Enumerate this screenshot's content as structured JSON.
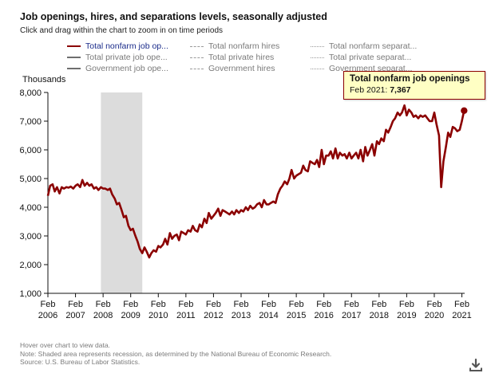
{
  "colors": {
    "accent": "#8b0000",
    "recession": "#dcdcdc",
    "tooltip_bg": "#ffffc4",
    "note": "#7a7a7a"
  },
  "legend": {
    "items": [
      {
        "label": "Total nonfarm job op...",
        "style": "solid",
        "active": true
      },
      {
        "label": "Total nonfarm hires",
        "style": "dash",
        "active": false
      },
      {
        "label": "Total nonfarm separat...",
        "style": "dot",
        "active": false
      },
      {
        "label": "Total private job ope...",
        "style": "solid",
        "active": false
      },
      {
        "label": "Total private hires",
        "style": "dash",
        "active": false
      },
      {
        "label": "Total private separat...",
        "style": "dot",
        "active": false
      },
      {
        "label": "Government job ope...",
        "style": "solid",
        "active": false
      },
      {
        "label": "Government hires",
        "style": "dash",
        "active": false
      },
      {
        "label": "Government separat...",
        "style": "dot",
        "active": false
      }
    ]
  },
  "tooltip": {
    "title": "Total nonfarm job openings",
    "date": "Feb 2021:",
    "value": "7,367"
  },
  "notes": {
    "hover": "Hover over chart to view data.",
    "shading": "Note: Shaded area represents recession, as determined by the National Bureau of Economic Research.",
    "source": "Source: U.S. Bureau of Labor Statistics."
  },
  "download_icon": "download-icon",
  "chart_data": {
    "type": "line",
    "title": "Job openings, hires, and separations levels, seasonally adjusted",
    "subtitle": "Click and drag within the chart to zoom in on time periods",
    "ylabel": "Thousands",
    "xlabel": "",
    "ylim": [
      1000,
      8000
    ],
    "y_ticks": [
      1000,
      2000,
      3000,
      4000,
      5000,
      6000,
      7000,
      8000
    ],
    "y_tick_labels": [
      "1,000",
      "2,000",
      "3,000",
      "4,000",
      "5,000",
      "6,000",
      "7,000",
      "8,000"
    ],
    "x_range": [
      2006.0,
      2021.1
    ],
    "x_ticks": [
      {
        "year": 2006,
        "line1": "Feb",
        "line2": "2006"
      },
      {
        "year": 2007,
        "line1": "Feb",
        "line2": "2007"
      },
      {
        "year": 2008,
        "line1": "Feb",
        "line2": "2008"
      },
      {
        "year": 2009,
        "line1": "Feb",
        "line2": "2009"
      },
      {
        "year": 2010,
        "line1": "Feb",
        "line2": "2010"
      },
      {
        "year": 2011,
        "line1": "Feb",
        "line2": "2011"
      },
      {
        "year": 2012,
        "line1": "Feb",
        "line2": "2012"
      },
      {
        "year": 2013,
        "line1": "Feb",
        "line2": "2013"
      },
      {
        "year": 2014,
        "line1": "Feb",
        "line2": "2014"
      },
      {
        "year": 2015,
        "line1": "Feb",
        "line2": "2015"
      },
      {
        "year": 2016,
        "line1": "Feb",
        "line2": "2016"
      },
      {
        "year": 2017,
        "line1": "Feb",
        "line2": "2017"
      },
      {
        "year": 2018,
        "line1": "Feb",
        "line2": "2018"
      },
      {
        "year": 2019,
        "line1": "Feb",
        "line2": "2019"
      },
      {
        "year": 2020,
        "line1": "Feb",
        "line2": "2020"
      },
      {
        "year": 2021,
        "line1": "Feb",
        "line2": "2021"
      }
    ],
    "recession": [
      2007.92,
      2009.42
    ],
    "grid": false,
    "series": [
      {
        "name": "Total nonfarm job openings",
        "color": "#8b0000",
        "points": [
          [
            2006.0,
            4400
          ],
          [
            2006.08,
            4750
          ],
          [
            2006.17,
            4800
          ],
          [
            2006.25,
            4550
          ],
          [
            2006.33,
            4700
          ],
          [
            2006.42,
            4480
          ],
          [
            2006.5,
            4700
          ],
          [
            2006.58,
            4650
          ],
          [
            2006.67,
            4700
          ],
          [
            2006.75,
            4680
          ],
          [
            2006.83,
            4720
          ],
          [
            2006.92,
            4650
          ],
          [
            2007.0,
            4750
          ],
          [
            2007.08,
            4800
          ],
          [
            2007.17,
            4700
          ],
          [
            2007.25,
            4950
          ],
          [
            2007.33,
            4750
          ],
          [
            2007.42,
            4850
          ],
          [
            2007.5,
            4750
          ],
          [
            2007.58,
            4800
          ],
          [
            2007.67,
            4650
          ],
          [
            2007.75,
            4700
          ],
          [
            2007.83,
            4600
          ],
          [
            2007.92,
            4700
          ],
          [
            2008.0,
            4650
          ],
          [
            2008.08,
            4650
          ],
          [
            2008.17,
            4600
          ],
          [
            2008.25,
            4650
          ],
          [
            2008.33,
            4450
          ],
          [
            2008.42,
            4300
          ],
          [
            2008.5,
            4100
          ],
          [
            2008.58,
            4150
          ],
          [
            2008.67,
            3900
          ],
          [
            2008.75,
            3650
          ],
          [
            2008.83,
            3700
          ],
          [
            2008.92,
            3350
          ],
          [
            2009.0,
            3200
          ],
          [
            2009.08,
            3250
          ],
          [
            2009.17,
            3000
          ],
          [
            2009.25,
            2800
          ],
          [
            2009.33,
            2550
          ],
          [
            2009.42,
            2400
          ],
          [
            2009.5,
            2600
          ],
          [
            2009.58,
            2450
          ],
          [
            2009.67,
            2250
          ],
          [
            2009.75,
            2400
          ],
          [
            2009.83,
            2500
          ],
          [
            2009.92,
            2450
          ],
          [
            2010.0,
            2650
          ],
          [
            2010.08,
            2600
          ],
          [
            2010.17,
            2700
          ],
          [
            2010.25,
            2900
          ],
          [
            2010.33,
            2700
          ],
          [
            2010.42,
            3100
          ],
          [
            2010.5,
            2900
          ],
          [
            2010.58,
            3000
          ],
          [
            2010.67,
            3050
          ],
          [
            2010.75,
            2850
          ],
          [
            2010.83,
            3150
          ],
          [
            2010.92,
            3100
          ],
          [
            2011.0,
            3050
          ],
          [
            2011.08,
            3200
          ],
          [
            2011.17,
            3150
          ],
          [
            2011.25,
            3350
          ],
          [
            2011.33,
            3200
          ],
          [
            2011.42,
            3150
          ],
          [
            2011.5,
            3400
          ],
          [
            2011.58,
            3300
          ],
          [
            2011.67,
            3600
          ],
          [
            2011.75,
            3450
          ],
          [
            2011.83,
            3800
          ],
          [
            2011.92,
            3600
          ],
          [
            2012.0,
            3700
          ],
          [
            2012.08,
            3800
          ],
          [
            2012.17,
            3950
          ],
          [
            2012.25,
            3700
          ],
          [
            2012.33,
            3900
          ],
          [
            2012.42,
            3850
          ],
          [
            2012.5,
            3800
          ],
          [
            2012.58,
            3750
          ],
          [
            2012.67,
            3850
          ],
          [
            2012.75,
            3750
          ],
          [
            2012.83,
            3900
          ],
          [
            2012.92,
            3800
          ],
          [
            2013.0,
            3900
          ],
          [
            2013.08,
            3850
          ],
          [
            2013.17,
            4000
          ],
          [
            2013.25,
            3900
          ],
          [
            2013.33,
            4050
          ],
          [
            2013.42,
            3950
          ],
          [
            2013.5,
            4000
          ],
          [
            2013.58,
            4100
          ],
          [
            2013.67,
            4150
          ],
          [
            2013.75,
            4000
          ],
          [
            2013.83,
            4250
          ],
          [
            2013.92,
            4100
          ],
          [
            2014.0,
            4100
          ],
          [
            2014.08,
            4150
          ],
          [
            2014.17,
            4200
          ],
          [
            2014.25,
            4150
          ],
          [
            2014.33,
            4450
          ],
          [
            2014.42,
            4650
          ],
          [
            2014.5,
            4750
          ],
          [
            2014.58,
            4900
          ],
          [
            2014.67,
            4800
          ],
          [
            2014.75,
            5000
          ],
          [
            2014.83,
            5300
          ],
          [
            2014.92,
            5000
          ],
          [
            2015.0,
            5100
          ],
          [
            2015.08,
            5150
          ],
          [
            2015.17,
            5200
          ],
          [
            2015.25,
            5450
          ],
          [
            2015.33,
            5300
          ],
          [
            2015.42,
            5250
          ],
          [
            2015.5,
            5600
          ],
          [
            2015.58,
            5550
          ],
          [
            2015.67,
            5500
          ],
          [
            2015.75,
            5650
          ],
          [
            2015.83,
            5400
          ],
          [
            2015.92,
            6000
          ],
          [
            2016.0,
            5500
          ],
          [
            2016.08,
            5800
          ],
          [
            2016.17,
            5800
          ],
          [
            2016.25,
            5950
          ],
          [
            2016.33,
            5700
          ],
          [
            2016.42,
            6050
          ],
          [
            2016.5,
            5700
          ],
          [
            2016.58,
            5900
          ],
          [
            2016.67,
            5800
          ],
          [
            2016.75,
            5850
          ],
          [
            2016.83,
            5700
          ],
          [
            2016.92,
            5900
          ],
          [
            2017.0,
            5700
          ],
          [
            2017.08,
            5800
          ],
          [
            2017.17,
            5900
          ],
          [
            2017.25,
            5700
          ],
          [
            2017.33,
            6000
          ],
          [
            2017.42,
            5600
          ],
          [
            2017.5,
            6100
          ],
          [
            2017.58,
            5800
          ],
          [
            2017.67,
            6000
          ],
          [
            2017.75,
            6200
          ],
          [
            2017.83,
            5800
          ],
          [
            2017.92,
            6300
          ],
          [
            2018.0,
            6200
          ],
          [
            2018.08,
            6400
          ],
          [
            2018.17,
            6300
          ],
          [
            2018.25,
            6700
          ],
          [
            2018.33,
            6600
          ],
          [
            2018.42,
            6800
          ],
          [
            2018.5,
            7000
          ],
          [
            2018.58,
            7100
          ],
          [
            2018.67,
            7300
          ],
          [
            2018.75,
            7200
          ],
          [
            2018.83,
            7300
          ],
          [
            2018.92,
            7550
          ],
          [
            2019.0,
            7200
          ],
          [
            2019.08,
            7400
          ],
          [
            2019.17,
            7300
          ],
          [
            2019.25,
            7150
          ],
          [
            2019.33,
            7200
          ],
          [
            2019.42,
            7100
          ],
          [
            2019.5,
            7200
          ],
          [
            2019.58,
            7150
          ],
          [
            2019.67,
            7200
          ],
          [
            2019.75,
            7100
          ],
          [
            2019.83,
            7000
          ],
          [
            2019.92,
            7000
          ],
          [
            2020.0,
            7300
          ],
          [
            2020.08,
            6900
          ],
          [
            2020.17,
            6500
          ],
          [
            2020.25,
            4700
          ],
          [
            2020.33,
            5600
          ],
          [
            2020.42,
            6100
          ],
          [
            2020.5,
            6600
          ],
          [
            2020.58,
            6450
          ],
          [
            2020.67,
            6800
          ],
          [
            2020.75,
            6750
          ],
          [
            2020.83,
            6650
          ],
          [
            2020.92,
            6700
          ],
          [
            2021.0,
            7000
          ],
          [
            2021.08,
            7367
          ]
        ]
      }
    ],
    "highlight": {
      "x": 2021.08,
      "y": 7367,
      "label": "Feb 2021: 7,367"
    }
  }
}
